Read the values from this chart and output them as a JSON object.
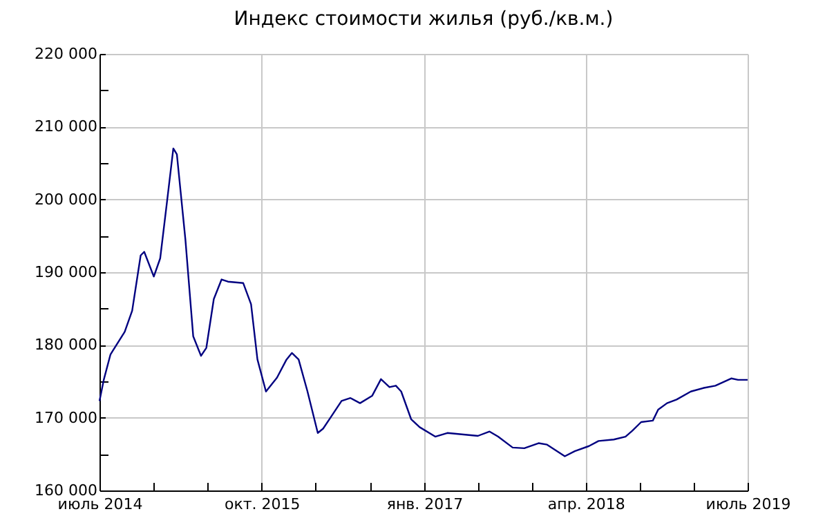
{
  "chart_data": {
    "type": "line",
    "title": "Индекс стоимости жилья (руб./кв.м.)",
    "x": [
      "2014-07-01",
      "2014-07-13",
      "2014-08-01",
      "2014-09-10",
      "2014-10-01",
      "2014-10-25",
      "2014-11-04",
      "2014-12-01",
      "2014-12-19",
      "2015-01-07",
      "2015-01-25",
      "2015-02-04",
      "2015-02-28",
      "2015-03-22",
      "2015-04-13",
      "2015-04-28",
      "2015-05-19",
      "2015-06-10",
      "2015-06-28",
      "2015-08-10",
      "2015-09-01",
      "2015-09-19",
      "2015-10-13",
      "2015-11-13",
      "2015-12-10",
      "2015-12-25",
      "2016-01-13",
      "2016-02-07",
      "2016-03-07",
      "2016-03-22",
      "2016-04-13",
      "2016-05-13",
      "2016-06-07",
      "2016-07-04",
      "2016-08-07",
      "2016-09-01",
      "2016-09-25",
      "2016-10-13",
      "2016-10-28",
      "2016-11-25",
      "2016-12-19",
      "2017-02-01",
      "2017-03-07",
      "2017-06-01",
      "2017-07-04",
      "2017-07-28",
      "2017-09-07",
      "2017-10-10",
      "2017-11-19",
      "2017-12-13",
      "2018-02-01",
      "2018-03-01",
      "2018-04-10",
      "2018-05-07",
      "2018-06-19",
      "2018-07-22",
      "2018-08-10",
      "2018-09-04",
      "2018-10-07",
      "2018-10-22",
      "2018-11-16",
      "2018-12-13",
      "2019-01-22",
      "2019-02-28",
      "2019-04-01",
      "2019-05-16",
      "2019-06-04",
      "2019-07-01"
    ],
    "series": [
      {
        "color": "#000080",
        "values": [
          172300,
          175200,
          178700,
          181800,
          184700,
          192300,
          192800,
          189400,
          191900,
          199600,
          207000,
          206200,
          194500,
          181200,
          178500,
          179600,
          186300,
          189000,
          188700,
          188500,
          185600,
          178000,
          173600,
          175500,
          178000,
          178900,
          178000,
          173600,
          167900,
          168500,
          170100,
          172300,
          172700,
          172000,
          173000,
          175300,
          174200,
          174400,
          173600,
          169800,
          168700,
          167400,
          167900,
          167500,
          168100,
          167400,
          165900,
          165800,
          166500,
          166300,
          164700,
          165400,
          166100,
          166800,
          167000,
          167400,
          168200,
          169400,
          169600,
          171100,
          172000,
          172500,
          173600,
          174100,
          174400,
          175400,
          175200,
          175200
        ]
      }
    ],
    "xlim": [
      "2014-07-01",
      "2019-07-01"
    ],
    "xticks": [
      {
        "value": "2014-07-01",
        "label": "июль 2014"
      },
      {
        "value": "2014-12-01",
        "label": null
      },
      {
        "value": "2015-05-01",
        "label": null
      },
      {
        "value": "2015-10-01",
        "label": "окт. 2015"
      },
      {
        "value": "2016-03-01",
        "label": null
      },
      {
        "value": "2016-08-01",
        "label": null
      },
      {
        "value": "2017-01-01",
        "label": "янв. 2017"
      },
      {
        "value": "2017-06-01",
        "label": null
      },
      {
        "value": "2017-11-01",
        "label": null
      },
      {
        "value": "2018-04-01",
        "label": "апр. 2018"
      },
      {
        "value": "2018-09-01",
        "label": null
      },
      {
        "value": "2019-02-01",
        "label": null
      },
      {
        "value": "2019-07-01",
        "label": "июль 2019"
      }
    ],
    "ylim": [
      160000,
      220000
    ],
    "yticks": [
      {
        "value": 160000,
        "label": "160 000"
      },
      {
        "value": 165000,
        "label": null
      },
      {
        "value": 170000,
        "label": "170 000"
      },
      {
        "value": 175000,
        "label": null
      },
      {
        "value": 180000,
        "label": "180 000"
      },
      {
        "value": 185000,
        "label": null
      },
      {
        "value": 190000,
        "label": "190 000"
      },
      {
        "value": 195000,
        "label": null
      },
      {
        "value": 200000,
        "label": "200 000"
      },
      {
        "value": 205000,
        "label": null
      },
      {
        "value": 210000,
        "label": "210 000"
      },
      {
        "value": 215000,
        "label": null
      },
      {
        "value": 220000,
        "label": "220 000"
      }
    ],
    "grid": true,
    "line_style": "solid"
  }
}
